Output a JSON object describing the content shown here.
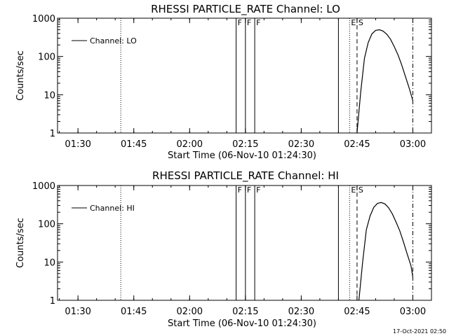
{
  "footer_timestamp": "17-Oct-2021 02:50",
  "chart_data": [
    {
      "type": "line",
      "title": "RHESSI PARTICLE_RATE Channel: LO",
      "xlabel": "Start Time (06-Nov-10 01:24:30)",
      "ylabel": "Counts/sec",
      "yscale": "log",
      "ylim": [
        1,
        1000
      ],
      "xlim": [
        "01:24:30",
        "03:05"
      ],
      "x_tick_labels": [
        "01:30",
        "01:45",
        "02:00",
        "02:15",
        "02:30",
        "02:45",
        "03:00"
      ],
      "y_tick_labels": [
        "1",
        "10",
        "100",
        "1000"
      ],
      "legend": {
        "label": "Channel: LO",
        "position": "top-left"
      },
      "markers": [
        {
          "time": "01:41:30",
          "style": "dotted",
          "label": ""
        },
        {
          "time": "02:12:30",
          "style": "solid",
          "label": "F"
        },
        {
          "time": "02:15:00",
          "style": "solid",
          "label": "F"
        },
        {
          "time": "02:17:30",
          "style": "solid",
          "label": "F"
        },
        {
          "time": "02:40:00",
          "style": "solid",
          "label": ""
        },
        {
          "time": "02:43:00",
          "style": "dotted",
          "label": "E"
        },
        {
          "time": "02:45:00",
          "style": "dashed",
          "label": "S"
        },
        {
          "time": "03:00:00",
          "style": "dash-dot",
          "label": ""
        }
      ],
      "series": [
        {
          "name": "Channel: LO",
          "x": [
            "02:45:00",
            "02:46:00",
            "02:47:00",
            "02:48:00",
            "02:49:00",
            "02:50:00",
            "02:51:00",
            "02:52:00",
            "02:53:00",
            "02:54:00",
            "02:55:00",
            "02:56:00",
            "02:57:00",
            "02:58:00",
            "02:59:00",
            "03:00:00"
          ],
          "values": [
            1,
            12,
            90,
            230,
            390,
            480,
            500,
            460,
            380,
            280,
            180,
            110,
            60,
            30,
            15,
            7
          ]
        }
      ]
    },
    {
      "type": "line",
      "title": "RHESSI PARTICLE_RATE Channel: HI",
      "xlabel": "Start Time (06-Nov-10 01:24:30)",
      "ylabel": "Counts/sec",
      "yscale": "log",
      "ylim": [
        1,
        1000
      ],
      "xlim": [
        "01:24:30",
        "03:05"
      ],
      "x_tick_labels": [
        "01:30",
        "01:45",
        "02:00",
        "02:15",
        "02:30",
        "02:45",
        "03:00"
      ],
      "y_tick_labels": [
        "1",
        "10",
        "100",
        "1000"
      ],
      "legend": {
        "label": "Channel: HI",
        "position": "top-left"
      },
      "markers": [
        {
          "time": "01:41:30",
          "style": "dotted",
          "label": ""
        },
        {
          "time": "02:12:30",
          "style": "solid",
          "label": "F"
        },
        {
          "time": "02:15:00",
          "style": "solid",
          "label": "F"
        },
        {
          "time": "02:17:30",
          "style": "solid",
          "label": "F"
        },
        {
          "time": "02:40:00",
          "style": "solid",
          "label": ""
        },
        {
          "time": "02:43:00",
          "style": "dotted",
          "label": "E"
        },
        {
          "time": "02:45:00",
          "style": "dashed",
          "label": "S"
        },
        {
          "time": "03:00:00",
          "style": "dash-dot",
          "label": ""
        }
      ],
      "series": [
        {
          "name": "Channel: HI",
          "x": [
            "02:45:30",
            "02:46:30",
            "02:47:30",
            "02:48:30",
            "02:49:30",
            "02:50:30",
            "02:51:30",
            "02:52:30",
            "02:53:30",
            "02:54:30",
            "02:55:30",
            "02:56:30",
            "02:57:30",
            "02:58:30",
            "02:59:30",
            "03:00:00"
          ],
          "values": [
            1,
            10,
            70,
            160,
            270,
            340,
            360,
            330,
            260,
            180,
            110,
            65,
            33,
            16,
            8,
            4
          ]
        }
      ]
    }
  ]
}
